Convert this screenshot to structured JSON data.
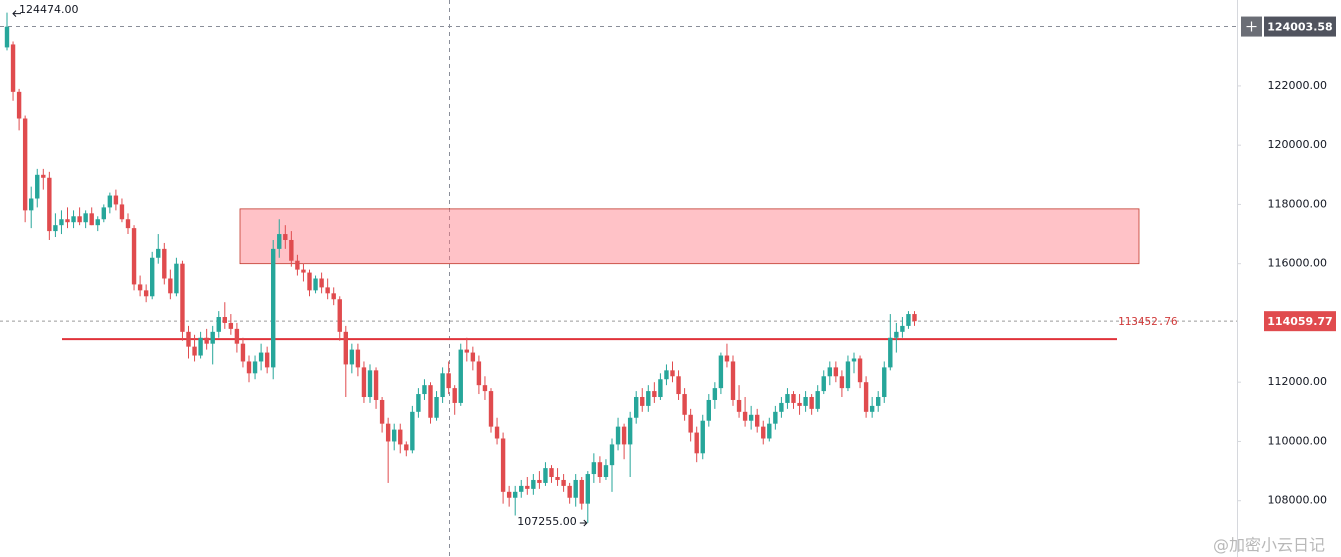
{
  "chart_data": {
    "type": "candlestick",
    "up_color": "#26a69a",
    "down_color": "#e04b4e",
    "ylim": [
      106100,
      124900
    ],
    "yticks": [
      {
        "value": 108000,
        "label": "108000.00"
      },
      {
        "value": 110000,
        "label": "110000.00"
      },
      {
        "value": 112000,
        "label": "112000.00"
      },
      {
        "value": 116000,
        "label": "116000.00"
      },
      {
        "value": 118000,
        "label": "118000.00"
      },
      {
        "value": 120000,
        "label": "120000.00"
      },
      {
        "value": 122000,
        "label": "122000.00"
      }
    ],
    "high_marker": {
      "value": 124474,
      "label": "124474.00"
    },
    "low_marker": {
      "value": 107255,
      "label": "107255.00"
    },
    "crosshair_price": 124003.58,
    "last_price": 114059.77,
    "support_line": 113452.76,
    "resistance_zone": {
      "top": 117850,
      "bottom": 116000
    },
    "ohlc": [
      [
        123300,
        124474,
        123200,
        124000
      ],
      [
        123400,
        123500,
        121500,
        121800
      ],
      [
        121800,
        121900,
        120500,
        120900
      ],
      [
        120900,
        121000,
        117400,
        117800
      ],
      [
        117800,
        118600,
        117200,
        118200
      ],
      [
        118200,
        119200,
        117900,
        119000
      ],
      [
        119000,
        119200,
        118500,
        118900
      ],
      [
        118900,
        119100,
        116800,
        117100
      ],
      [
        117100,
        117700,
        116900,
        117300
      ],
      [
        117300,
        117800,
        117000,
        117500
      ],
      [
        117500,
        117900,
        117200,
        117400
      ],
      [
        117400,
        117800,
        117200,
        117600
      ],
      [
        117600,
        117900,
        117300,
        117400
      ],
      [
        117400,
        117800,
        117200,
        117700
      ],
      [
        117700,
        117900,
        117300,
        117300
      ],
      [
        117300,
        117600,
        117100,
        117500
      ],
      [
        117500,
        118000,
        117400,
        117900
      ],
      [
        117900,
        118400,
        117700,
        118300
      ],
      [
        118300,
        118500,
        117800,
        118000
      ],
      [
        118000,
        118200,
        117400,
        117500
      ],
      [
        117500,
        117700,
        117000,
        117200
      ],
      [
        117200,
        117300,
        115100,
        115300
      ],
      [
        115300,
        115600,
        114900,
        115100
      ],
      [
        115100,
        115300,
        114700,
        114900
      ],
      [
        114900,
        116400,
        114800,
        116200
      ],
      [
        116200,
        117000,
        116000,
        116500
      ],
      [
        116500,
        116700,
        115300,
        115500
      ],
      [
        115500,
        115800,
        114800,
        115000
      ],
      [
        115000,
        116200,
        114900,
        116000
      ],
      [
        116000,
        116100,
        113400,
        113700
      ],
      [
        113700,
        113900,
        112800,
        113200
      ],
      [
        113200,
        113600,
        112700,
        112900
      ],
      [
        112900,
        113700,
        112800,
        113500
      ],
      [
        113500,
        113800,
        113100,
        113300
      ],
      [
        113300,
        113900,
        112600,
        113700
      ],
      [
        113700,
        114400,
        113500,
        114200
      ],
      [
        114200,
        114700,
        113800,
        114000
      ],
      [
        114000,
        114300,
        113600,
        113800
      ],
      [
        113800,
        114000,
        113000,
        113300
      ],
      [
        113300,
        113500,
        112500,
        112700
      ],
      [
        112700,
        112900,
        112000,
        112300
      ],
      [
        112300,
        112900,
        112100,
        112700
      ],
      [
        112700,
        113300,
        112400,
        113000
      ],
      [
        113000,
        113200,
        112300,
        112500
      ],
      [
        112500,
        116800,
        112100,
        116500
      ],
      [
        116500,
        117500,
        116200,
        117000
      ],
      [
        117000,
        117300,
        116500,
        116800
      ],
      [
        116800,
        117100,
        115900,
        116100
      ],
      [
        116100,
        116300,
        115600,
        115800
      ],
      [
        115800,
        116000,
        115400,
        115700
      ],
      [
        115700,
        115800,
        114900,
        115100
      ],
      [
        115100,
        115600,
        115000,
        115500
      ],
      [
        115500,
        115700,
        115000,
        115200
      ],
      [
        115200,
        115500,
        114800,
        115000
      ],
      [
        115000,
        115200,
        114600,
        114800
      ],
      [
        114800,
        114900,
        113400,
        113700
      ],
      [
        113700,
        113900,
        111500,
        112600
      ],
      [
        112600,
        113300,
        112300,
        113100
      ],
      [
        113100,
        113300,
        112200,
        112500
      ],
      [
        112500,
        112700,
        111300,
        111500
      ],
      [
        111500,
        112600,
        111300,
        112400
      ],
      [
        112400,
        112500,
        111100,
        111400
      ],
      [
        111400,
        111500,
        110300,
        110600
      ],
      [
        110600,
        110800,
        108600,
        110000
      ],
      [
        110000,
        110600,
        109700,
        110400
      ],
      [
        110400,
        110600,
        109600,
        109900
      ],
      [
        109900,
        110000,
        109500,
        109700
      ],
      [
        109700,
        111200,
        109600,
        111000
      ],
      [
        111000,
        111800,
        110800,
        111600
      ],
      [
        111600,
        112100,
        111400,
        111900
      ],
      [
        111900,
        112000,
        110600,
        110800
      ],
      [
        110800,
        111700,
        110700,
        111500
      ],
      [
        111500,
        112500,
        111300,
        112300
      ],
      [
        112300,
        112700,
        111600,
        111800
      ],
      [
        111800,
        111900,
        110900,
        111300
      ],
      [
        111300,
        113300,
        111200,
        113100
      ],
      [
        113100,
        113500,
        112700,
        113000
      ],
      [
        113000,
        113200,
        112400,
        112700
      ],
      [
        112700,
        112900,
        111600,
        111900
      ],
      [
        111900,
        112200,
        111400,
        111700
      ],
      [
        111700,
        111800,
        110300,
        110500
      ],
      [
        110500,
        110800,
        109900,
        110100
      ],
      [
        110100,
        110300,
        107900,
        108300
      ],
      [
        108300,
        108500,
        107800,
        108100
      ],
      [
        108100,
        108500,
        107500,
        108300
      ],
      [
        108300,
        108700,
        108100,
        108500
      ],
      [
        108500,
        108800,
        108200,
        108400
      ],
      [
        108400,
        108900,
        108200,
        108700
      ],
      [
        108700,
        109000,
        108400,
        108600
      ],
      [
        108600,
        109300,
        108500,
        109100
      ],
      [
        109100,
        109200,
        108600,
        108800
      ],
      [
        108800,
        109100,
        108500,
        108700
      ],
      [
        108700,
        108900,
        108300,
        108500
      ],
      [
        108500,
        108600,
        107900,
        108100
      ],
      [
        108100,
        108900,
        107800,
        108700
      ],
      [
        108700,
        108800,
        107700,
        107900
      ],
      [
        107900,
        109000,
        107255,
        108900
      ],
      [
        108900,
        109600,
        108600,
        109300
      ],
      [
        109300,
        109500,
        108600,
        108800
      ],
      [
        108800,
        109400,
        108700,
        109200
      ],
      [
        109200,
        110100,
        108300,
        109900
      ],
      [
        109900,
        110800,
        109700,
        110500
      ],
      [
        110500,
        110600,
        109400,
        109900
      ],
      [
        109900,
        111000,
        108800,
        110800
      ],
      [
        110800,
        111700,
        110600,
        111500
      ],
      [
        111500,
        111800,
        111000,
        111200
      ],
      [
        111200,
        111900,
        111000,
        111700
      ],
      [
        111700,
        112000,
        111300,
        111500
      ],
      [
        111500,
        112300,
        111400,
        112100
      ],
      [
        112100,
        112600,
        111900,
        112400
      ],
      [
        112400,
        112700,
        112000,
        112200
      ],
      [
        112200,
        112400,
        111400,
        111600
      ],
      [
        111600,
        111800,
        110700,
        110900
      ],
      [
        110900,
        111100,
        110000,
        110300
      ],
      [
        110300,
        110500,
        109300,
        109600
      ],
      [
        109600,
        110900,
        109400,
        110700
      ],
      [
        110700,
        111600,
        110500,
        111400
      ],
      [
        111400,
        112000,
        111100,
        111800
      ],
      [
        111800,
        113000,
        111600,
        112900
      ],
      [
        112900,
        113300,
        112500,
        112700
      ],
      [
        112700,
        112900,
        111200,
        111400
      ],
      [
        111400,
        111900,
        110800,
        111000
      ],
      [
        111000,
        111500,
        110500,
        110700
      ],
      [
        110700,
        111200,
        110400,
        110900
      ],
      [
        110900,
        111100,
        110300,
        110500
      ],
      [
        110500,
        110700,
        109900,
        110100
      ],
      [
        110100,
        110800,
        110000,
        110600
      ],
      [
        110600,
        111200,
        110400,
        111000
      ],
      [
        111000,
        111500,
        110800,
        111300
      ],
      [
        111300,
        111800,
        111100,
        111600
      ],
      [
        111600,
        111700,
        111100,
        111300
      ],
      [
        111300,
        111600,
        110900,
        111200
      ],
      [
        111200,
        111700,
        111000,
        111500
      ],
      [
        111500,
        111600,
        110900,
        111100
      ],
      [
        111100,
        111900,
        111000,
        111700
      ],
      [
        111700,
        112400,
        111600,
        112200
      ],
      [
        112200,
        112700,
        111900,
        112500
      ],
      [
        112500,
        112700,
        112000,
        112200
      ],
      [
        112200,
        112400,
        111500,
        111800
      ],
      [
        111800,
        112900,
        111700,
        112700
      ],
      [
        112700,
        113000,
        112300,
        112800
      ],
      [
        112800,
        112900,
        111800,
        112000
      ],
      [
        112000,
        112200,
        110800,
        111000
      ],
      [
        111000,
        111500,
        110800,
        111200
      ],
      [
        111200,
        111700,
        111000,
        111500
      ],
      [
        111500,
        112700,
        111300,
        112500
      ],
      [
        112500,
        114300,
        112400,
        113500
      ],
      [
        113500,
        114000,
        113000,
        113700
      ],
      [
        113700,
        114200,
        113500,
        113900
      ],
      [
        113900,
        114400,
        113800,
        114300
      ],
      [
        114300,
        114400,
        113900,
        114059.77
      ]
    ]
  },
  "watermark": "@加密小云日记"
}
